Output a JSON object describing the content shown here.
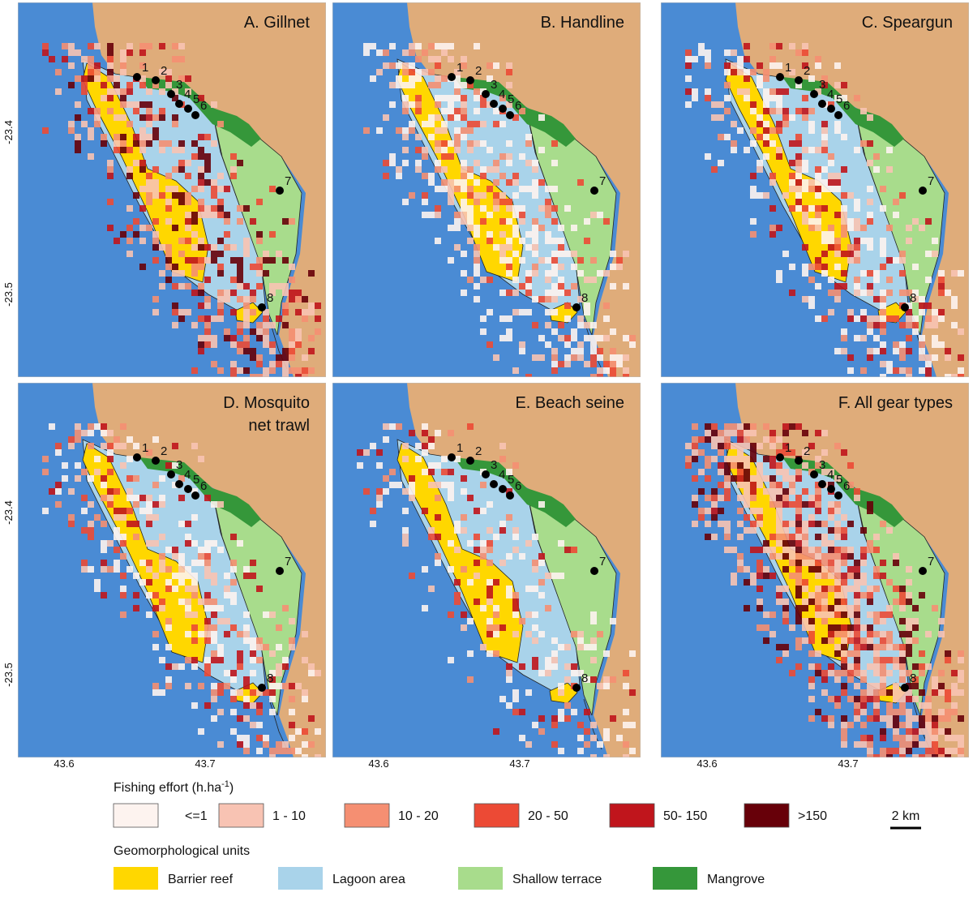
{
  "panels": [
    {
      "title": [
        "A. Gillnet"
      ]
    },
    {
      "title": [
        "B. Handline"
      ]
    },
    {
      "title": [
        "C. Speargun"
      ]
    },
    {
      "title": [
        "D. Mosquito",
        "net trawl"
      ]
    },
    {
      "title": [
        "E. Beach seine"
      ]
    },
    {
      "title": [
        "F. All gear types"
      ]
    }
  ],
  "sites": [
    "1",
    "2",
    "3",
    "4",
    "5",
    "6",
    "7",
    "8"
  ],
  "axes": {
    "yticks": [
      -23.4,
      -23.5
    ],
    "xticks": [
      43.6,
      43.7
    ]
  },
  "legend": {
    "effort_title": {
      "text": "Fishing effort (h.ha",
      "superscript": "-1",
      "close": ")"
    },
    "effort_classes": [
      {
        "label": "<=1",
        "color": "#fdf3ef"
      },
      {
        "label": "1 - 10",
        "color": "#f8c3b3"
      },
      {
        "label": "10 - 20",
        "color": "#f58f72"
      },
      {
        "label": "20 - 50",
        "color": "#ec4a35"
      },
      {
        "label": "50- 150",
        "color": "#c0151c"
      },
      {
        "label": ">150",
        "color": "#670009"
      }
    ],
    "units_title": "Geomorphological units",
    "units": [
      {
        "label": "Barrier reef",
        "color": "#ffd700"
      },
      {
        "label": "Lagoon area",
        "color": "#a9d3ea"
      },
      {
        "label": "Shallow terrace",
        "color": "#a8dc8c"
      },
      {
        "label": "Mangrove",
        "color": "#35973a"
      }
    ],
    "scale": "2 km"
  }
}
